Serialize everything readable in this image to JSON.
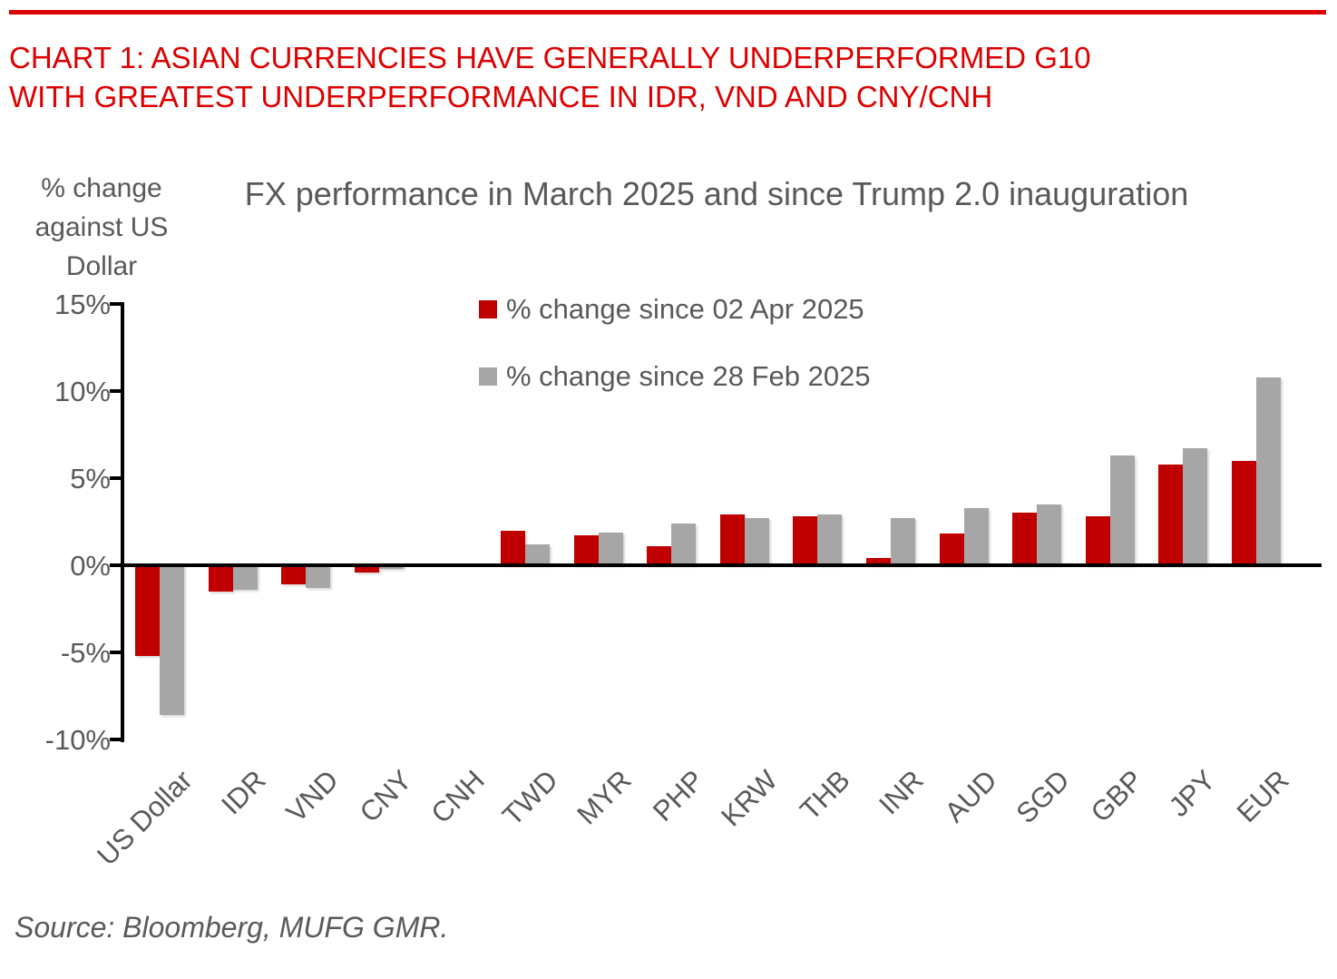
{
  "page": {
    "header_line1": "CHART 1: ASIAN CURRENCIES HAVE GENERALLY UNDERPERFORMED G10",
    "header_line2": "WITH GREATEST UNDERPERFORMANCE IN IDR, VND AND CNY/CNH",
    "source": "Source: Bloomberg, MUFG GMR."
  },
  "colors": {
    "accent_red": "#dd0000",
    "bar_red": "#c00000",
    "bar_grey": "#a6a6a6",
    "text_grey": "#595959",
    "axis_black": "#000000"
  },
  "chart_data": {
    "type": "bar",
    "title": "FX performance in March 2025 and since Trump 2.0 inauguration",
    "y_axis_caption": "% change against US Dollar",
    "categories": [
      "US Dollar",
      "IDR",
      "VND",
      "CNY",
      "CNH",
      "TWD",
      "MYR",
      "PHP",
      "KRW",
      "THB",
      "INR",
      "AUD",
      "SGD",
      "GBP",
      "JPY",
      "EUR"
    ],
    "series": [
      {
        "name": "% change since 02 Apr 2025",
        "color": "#c00000",
        "values": [
          -5.2,
          -1.5,
          -1.1,
          -0.4,
          0.0,
          2.0,
          1.7,
          1.1,
          2.9,
          2.8,
          0.4,
          1.8,
          3.0,
          2.8,
          5.8,
          6.0
        ]
      },
      {
        "name": "% change since 28 Feb 2025",
        "color": "#a6a6a6",
        "values": [
          -8.6,
          -1.4,
          -1.3,
          -0.2,
          0.0,
          1.2,
          1.9,
          2.4,
          2.7,
          2.9,
          2.7,
          3.3,
          3.5,
          6.3,
          6.7,
          10.8
        ]
      }
    ],
    "ylabel": "% change against US Dollar",
    "y_ticks": [
      {
        "label": "15%",
        "value": 15
      },
      {
        "label": "10%",
        "value": 10
      },
      {
        "label": "5%",
        "value": 5
      },
      {
        "label": "0%",
        "value": 0
      },
      {
        "label": "-5%",
        "value": -5
      },
      {
        "label": "-10%",
        "value": -10
      }
    ],
    "ylim": [
      -10,
      15
    ],
    "grid": false,
    "legend_position": "top-center"
  }
}
